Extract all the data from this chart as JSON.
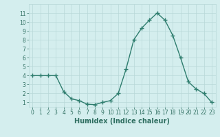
{
  "x": [
    0,
    1,
    2,
    3,
    4,
    5,
    6,
    7,
    8,
    9,
    10,
    11,
    12,
    13,
    14,
    15,
    16,
    17,
    18,
    19,
    20,
    21,
    22,
    23
  ],
  "y": [
    4,
    4,
    4,
    4,
    2.2,
    1.4,
    1.2,
    0.8,
    0.75,
    1.0,
    1.2,
    2.0,
    4.7,
    8.0,
    9.3,
    10.2,
    11.0,
    10.2,
    8.5,
    6.0,
    3.3,
    2.5,
    2.0,
    1.0
  ],
  "line_color": "#2e7d6e",
  "marker": "+",
  "marker_size": 4,
  "bg_color": "#d4eeee",
  "grid_color": "#b8d8d8",
  "xlabel": "Humidex (Indice chaleur)",
  "xlim": [
    -0.5,
    23.5
  ],
  "ylim": [
    0.5,
    12
  ],
  "yticks": [
    1,
    2,
    3,
    4,
    5,
    6,
    7,
    8,
    9,
    10,
    11
  ],
  "xticks": [
    0,
    1,
    2,
    3,
    4,
    5,
    6,
    7,
    8,
    9,
    10,
    11,
    12,
    13,
    14,
    15,
    16,
    17,
    18,
    19,
    20,
    21,
    22,
    23
  ],
  "tick_fontsize": 5.5,
  "xlabel_fontsize": 7,
  "label_color": "#2e6e60",
  "tick_color": "#2e6e60",
  "linewidth": 1.0,
  "marker_linewidth": 1.0
}
